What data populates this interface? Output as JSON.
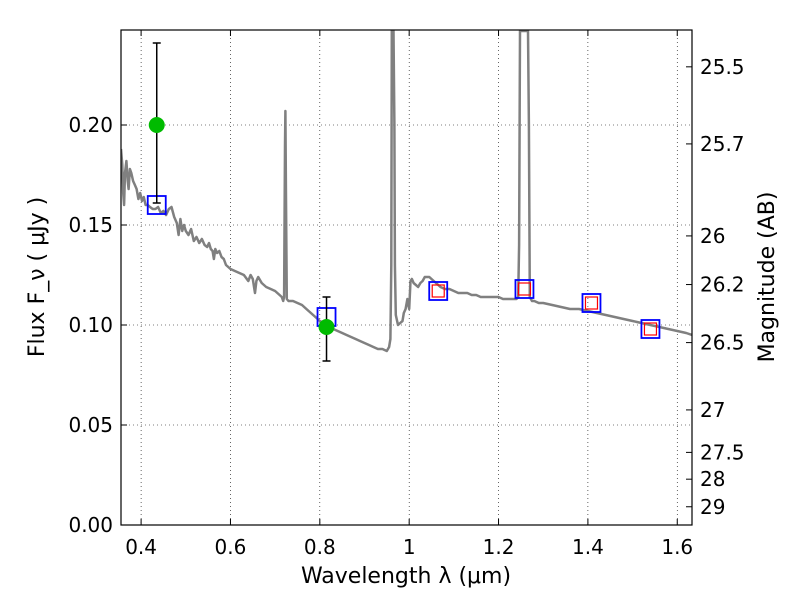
{
  "chart_data": {
    "type": "line",
    "xlabel": "Wavelength  λ (μm)",
    "ylabel": "Flux  F_ν  ( μJy )",
    "ylabel_right": "Magnitude (AB)",
    "xlim": [
      0.355,
      1.633
    ],
    "ylim": [
      0.0,
      0.2475
    ],
    "grid": true,
    "x_ticks": [
      {
        "value": 0.4,
        "label": "0.4"
      },
      {
        "value": 0.6,
        "label": "0.6"
      },
      {
        "value": 0.8,
        "label": "0.8"
      },
      {
        "value": 1.0,
        "label": "1"
      },
      {
        "value": 1.2,
        "label": "1.2"
      },
      {
        "value": 1.4,
        "label": "1.4"
      },
      {
        "value": 1.6,
        "label": "1.6"
      }
    ],
    "y_ticks": [
      {
        "value": 0.0,
        "label": "0.00"
      },
      {
        "value": 0.05,
        "label": "0.05"
      },
      {
        "value": 0.1,
        "label": "0.10"
      },
      {
        "value": 0.15,
        "label": "0.15"
      },
      {
        "value": 0.2,
        "label": "0.20"
      }
    ],
    "y2_ticks": [
      {
        "mag": 25.5,
        "label": "25.5"
      },
      {
        "mag": 25.7,
        "label": "25.7"
      },
      {
        "mag": 26.0,
        "label": "26"
      },
      {
        "mag": 26.2,
        "label": "26.2"
      },
      {
        "mag": 26.5,
        "label": "26.5"
      },
      {
        "mag": 27.0,
        "label": "27"
      },
      {
        "mag": 27.5,
        "label": "27.5"
      },
      {
        "mag": 28.0,
        "label": "28"
      },
      {
        "mag": 29.0,
        "label": "29"
      }
    ],
    "series": [
      {
        "kind": "spectrum",
        "color": "#808080",
        "points": [
          [
            0.355,
            0.188
          ],
          [
            0.358,
            0.18
          ],
          [
            0.36,
            0.166
          ],
          [
            0.362,
            0.16
          ],
          [
            0.364,
            0.176
          ],
          [
            0.367,
            0.182
          ],
          [
            0.37,
            0.172
          ],
          [
            0.372,
            0.168
          ],
          [
            0.375,
            0.178
          ],
          [
            0.378,
            0.176
          ],
          [
            0.382,
            0.172
          ],
          [
            0.386,
            0.17
          ],
          [
            0.39,
            0.168
          ],
          [
            0.394,
            0.163
          ],
          [
            0.398,
            0.166
          ],
          [
            0.402,
            0.162
          ],
          [
            0.406,
            0.164
          ],
          [
            0.41,
            0.16
          ],
          [
            0.415,
            0.16
          ],
          [
            0.42,
            0.159
          ],
          [
            0.426,
            0.158
          ],
          [
            0.432,
            0.158
          ],
          [
            0.438,
            0.159
          ],
          [
            0.444,
            0.156
          ],
          [
            0.45,
            0.157
          ],
          [
            0.456,
            0.155
          ],
          [
            0.462,
            0.158
          ],
          [
            0.468,
            0.159
          ],
          [
            0.474,
            0.154
          ],
          [
            0.48,
            0.151
          ],
          [
            0.484,
            0.145
          ],
          [
            0.488,
            0.153
          ],
          [
            0.492,
            0.147
          ],
          [
            0.496,
            0.15
          ],
          [
            0.5,
            0.147
          ],
          [
            0.506,
            0.145
          ],
          [
            0.512,
            0.148
          ],
          [
            0.518,
            0.142
          ],
          [
            0.524,
            0.144
          ],
          [
            0.53,
            0.141
          ],
          [
            0.536,
            0.143
          ],
          [
            0.542,
            0.14
          ],
          [
            0.548,
            0.139
          ],
          [
            0.552,
            0.141
          ],
          [
            0.556,
            0.138
          ],
          [
            0.56,
            0.137
          ],
          [
            0.563,
            0.133
          ],
          [
            0.566,
            0.138
          ],
          [
            0.57,
            0.136
          ],
          [
            0.575,
            0.137
          ],
          [
            0.58,
            0.134
          ],
          [
            0.585,
            0.133
          ],
          [
            0.59,
            0.13
          ],
          [
            0.6,
            0.128
          ],
          [
            0.61,
            0.127
          ],
          [
            0.62,
            0.126
          ],
          [
            0.63,
            0.125
          ],
          [
            0.64,
            0.122
          ],
          [
            0.645,
            0.125
          ],
          [
            0.65,
            0.123
          ],
          [
            0.655,
            0.116
          ],
          [
            0.658,
            0.122
          ],
          [
            0.662,
            0.124
          ],
          [
            0.67,
            0.121
          ],
          [
            0.68,
            0.119
          ],
          [
            0.69,
            0.118
          ],
          [
            0.7,
            0.117
          ],
          [
            0.71,
            0.115
          ],
          [
            0.715,
            0.114
          ],
          [
            0.718,
            0.112
          ],
          [
            0.72,
            0.114
          ],
          [
            0.722,
            0.19
          ],
          [
            0.723,
            0.207
          ],
          [
            0.724,
            0.17
          ],
          [
            0.726,
            0.113
          ],
          [
            0.73,
            0.112
          ],
          [
            0.74,
            0.112
          ],
          [
            0.75,
            0.111
          ],
          [
            0.76,
            0.11
          ],
          [
            0.77,
            0.108
          ],
          [
            0.78,
            0.106
          ],
          [
            0.79,
            0.104
          ],
          [
            0.8,
            0.102
          ],
          [
            0.81,
            0.101
          ],
          [
            0.82,
            0.1
          ],
          [
            0.83,
            0.098
          ],
          [
            0.84,
            0.097
          ],
          [
            0.85,
            0.096
          ],
          [
            0.86,
            0.095
          ],
          [
            0.87,
            0.094
          ],
          [
            0.88,
            0.093
          ],
          [
            0.89,
            0.092
          ],
          [
            0.9,
            0.091
          ],
          [
            0.91,
            0.09
          ],
          [
            0.92,
            0.089
          ],
          [
            0.93,
            0.088
          ],
          [
            0.94,
            0.088
          ],
          [
            0.95,
            0.087
          ],
          [
            0.955,
            0.089
          ],
          [
            0.958,
            0.093
          ],
          [
            0.96,
            0.13
          ],
          [
            0.961,
            0.247
          ],
          [
            0.965,
            0.247
          ],
          [
            0.967,
            0.2
          ],
          [
            0.968,
            0.13
          ],
          [
            0.97,
            0.105
          ],
          [
            0.975,
            0.1
          ],
          [
            0.98,
            0.101
          ],
          [
            0.985,
            0.102
          ],
          [
            0.988,
            0.106
          ],
          [
            0.992,
            0.108
          ],
          [
            0.996,
            0.113
          ],
          [
            1.0,
            0.108
          ],
          [
            1.003,
            0.122
          ],
          [
            1.006,
            0.123
          ],
          [
            1.01,
            0.121
          ],
          [
            1.015,
            0.12
          ],
          [
            1.02,
            0.119
          ],
          [
            1.025,
            0.121
          ],
          [
            1.03,
            0.122
          ],
          [
            1.035,
            0.124
          ],
          [
            1.04,
            0.124
          ],
          [
            1.045,
            0.124
          ],
          [
            1.05,
            0.123
          ],
          [
            1.06,
            0.121
          ],
          [
            1.07,
            0.119
          ],
          [
            1.08,
            0.118
          ],
          [
            1.09,
            0.118
          ],
          [
            1.1,
            0.117
          ],
          [
            1.11,
            0.116
          ],
          [
            1.12,
            0.116
          ],
          [
            1.13,
            0.116
          ],
          [
            1.14,
            0.115
          ],
          [
            1.15,
            0.115
          ],
          [
            1.16,
            0.114
          ],
          [
            1.17,
            0.114
          ],
          [
            1.18,
            0.114
          ],
          [
            1.19,
            0.114
          ],
          [
            1.2,
            0.114
          ],
          [
            1.21,
            0.113
          ],
          [
            1.22,
            0.113
          ],
          [
            1.23,
            0.113
          ],
          [
            1.24,
            0.113
          ],
          [
            1.244,
            0.114
          ],
          [
            1.246,
            0.14
          ],
          [
            1.248,
            0.247
          ],
          [
            1.262,
            0.247
          ],
          [
            1.264,
            0.247
          ],
          [
            1.266,
            0.247
          ],
          [
            1.268,
            0.2
          ],
          [
            1.27,
            0.114
          ],
          [
            1.275,
            0.112
          ],
          [
            1.28,
            0.112
          ],
          [
            1.29,
            0.111
          ],
          [
            1.3,
            0.111
          ],
          [
            1.32,
            0.11
          ],
          [
            1.34,
            0.109
          ],
          [
            1.36,
            0.108
          ],
          [
            1.38,
            0.108
          ],
          [
            1.4,
            0.107
          ],
          [
            1.42,
            0.106
          ],
          [
            1.44,
            0.105
          ],
          [
            1.46,
            0.104
          ],
          [
            1.48,
            0.103
          ],
          [
            1.5,
            0.102
          ],
          [
            1.52,
            0.101
          ],
          [
            1.54,
            0.1
          ],
          [
            1.56,
            0.099
          ],
          [
            1.58,
            0.098
          ],
          [
            1.6,
            0.097
          ],
          [
            1.62,
            0.096
          ],
          [
            1.633,
            0.095
          ]
        ]
      },
      {
        "kind": "model_photometry",
        "marker": "open-square",
        "color": "#0000ff",
        "points": [
          [
            0.435,
            0.16
          ],
          [
            0.815,
            0.104
          ],
          [
            1.065,
            0.117
          ],
          [
            1.258,
            0.118
          ],
          [
            1.408,
            0.111
          ],
          [
            1.54,
            0.098
          ]
        ]
      },
      {
        "kind": "synthetic_photometry",
        "marker": "open-square-small",
        "color": "#ff0000",
        "points": [
          [
            1.065,
            0.117
          ],
          [
            1.258,
            0.118
          ],
          [
            1.408,
            0.111
          ],
          [
            1.54,
            0.098
          ]
        ]
      },
      {
        "kind": "observed",
        "marker": "filled-circle",
        "color": "#00bb00",
        "points": [
          {
            "x": 0.435,
            "y": 0.2,
            "yerr_low": 0.161,
            "yerr_high": 0.241
          },
          {
            "x": 0.815,
            "y": 0.099,
            "yerr_low": 0.082,
            "yerr_high": 0.114
          }
        ]
      }
    ]
  }
}
